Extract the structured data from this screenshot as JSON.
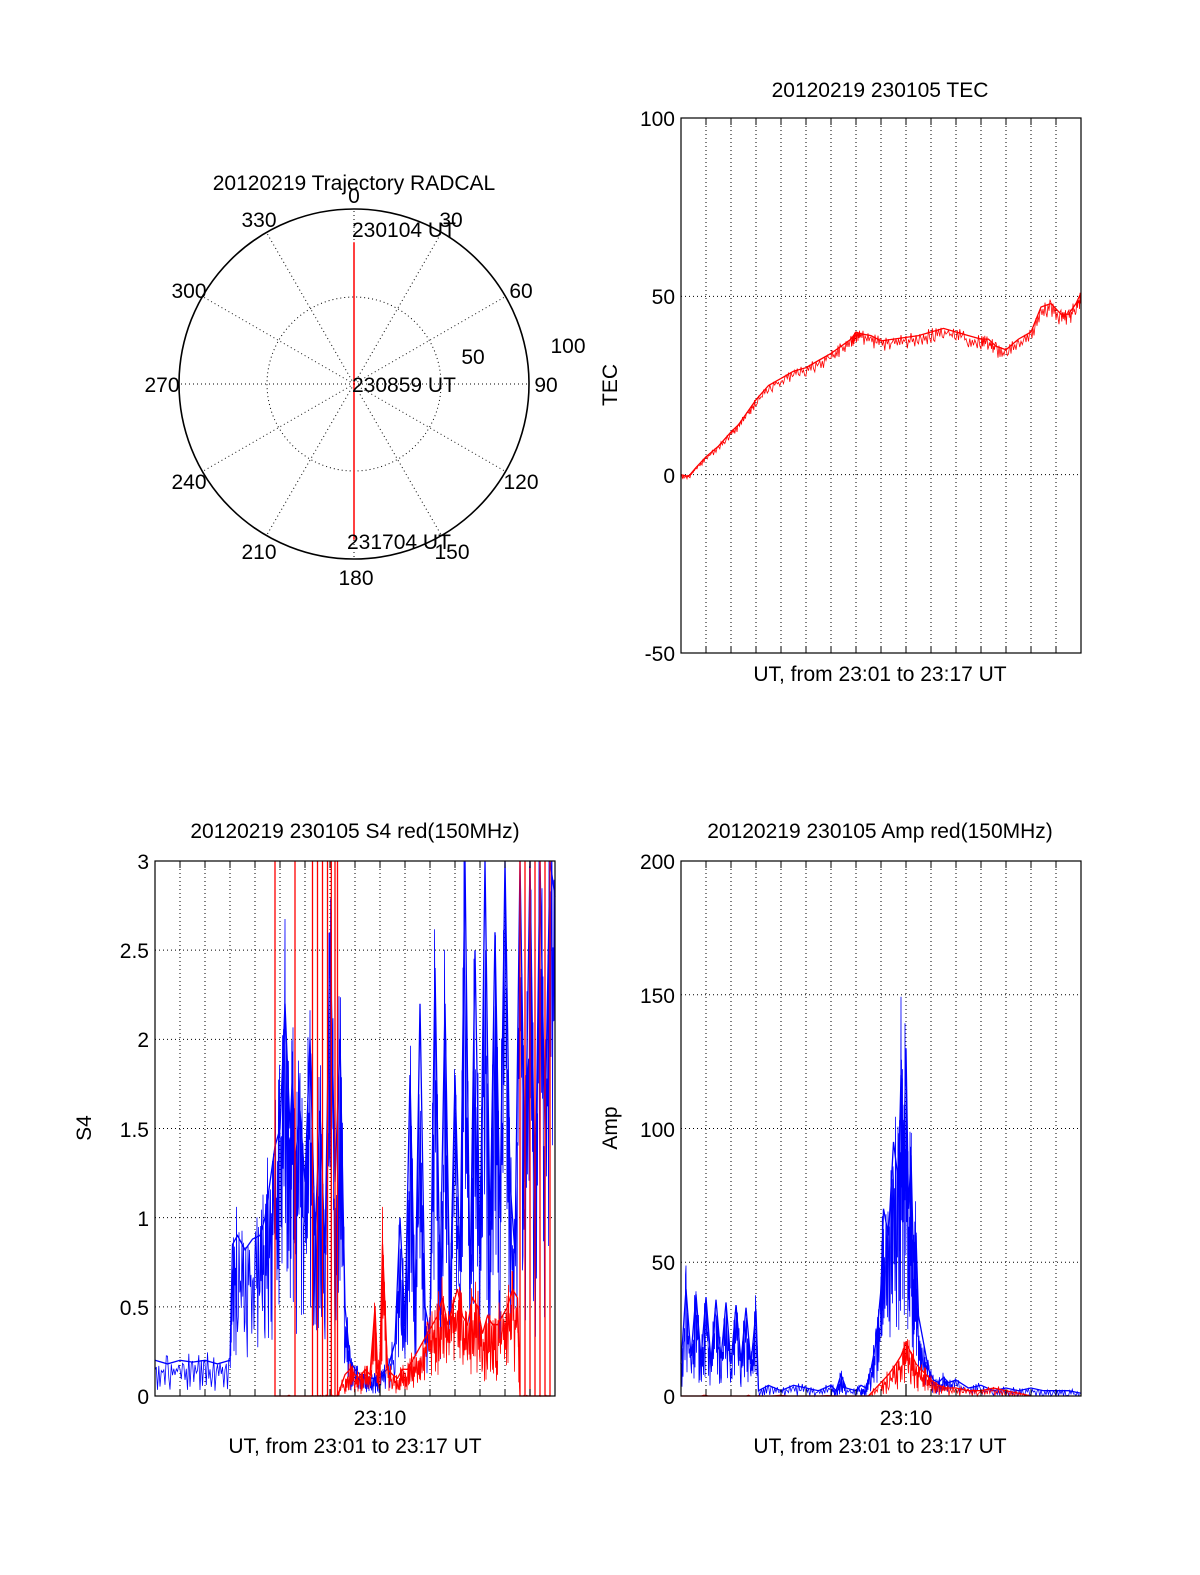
{
  "chart_data": [
    {
      "id": "polar",
      "type": "scatter",
      "title": "20120219 Trajectory RADCAL",
      "projection": "polar",
      "azimuth_labels": [
        "0",
        "30",
        "60",
        "90",
        "120",
        "150",
        "180",
        "210",
        "240",
        "270",
        "300",
        "330"
      ],
      "radius_labels": [
        "50",
        "100"
      ],
      "rlim": [
        0,
        100
      ],
      "grid": true,
      "annotations": [
        "230104 UT",
        "230859 UT",
        "231704 UT"
      ],
      "trajectory": {
        "color": "#ff0000",
        "points": [
          [
            0,
            81
          ],
          [
            0,
            40
          ],
          [
            0,
            5
          ],
          [
            180,
            10
          ],
          [
            180,
            50
          ],
          [
            180,
            89
          ]
        ]
      }
    },
    {
      "id": "tec",
      "type": "line",
      "title": "20120219 230105 TEC",
      "xlabel": "UT, from 23:01 to 23:17 UT",
      "ylabel": "TEC",
      "xlim": [
        0,
        16
      ],
      "ylim": [
        -50,
        100
      ],
      "yticks": [
        "100",
        "50",
        "0",
        "-50"
      ],
      "grid": true,
      "series": [
        {
          "color": "#ff0000",
          "x": [
            0,
            0.3,
            0.6,
            1.0,
            1.5,
            2.0,
            2.3,
            2.7,
            3.0,
            3.5,
            4.0,
            4.5,
            5.0,
            5.5,
            6.0,
            6.4,
            6.8,
            7.0,
            7.2,
            7.6,
            8.0,
            8.5,
            9.0,
            9.5,
            10.0,
            10.5,
            11.0,
            11.5,
            12.0,
            12.3,
            12.6,
            13.0,
            13.5,
            14.0,
            14.4,
            14.8,
            15.2,
            15.5,
            15.8,
            16.0
          ],
          "y": [
            0,
            -0.5,
            2,
            5,
            8,
            12,
            14,
            18,
            21,
            25,
            27,
            29,
            30,
            32,
            34,
            36,
            38,
            40,
            39.5,
            39,
            37.5,
            38,
            38.5,
            39,
            40,
            41,
            40,
            39,
            38,
            38,
            36,
            35,
            38,
            40,
            47,
            48,
            45,
            45,
            48,
            51
          ]
        }
      ]
    },
    {
      "id": "s4",
      "type": "line",
      "title": "20120219 230105 S4 red(150MHz)",
      "xlabel": "UT, from 23:01 to 23:17 UT",
      "ylabel": "S4",
      "xlim": [
        0,
        16
      ],
      "ylim": [
        0,
        3
      ],
      "yticks": [
        "3",
        "2.5",
        "2",
        "1.5",
        "1",
        "0.5",
        "0"
      ],
      "xticks": [
        {
          "value": 9,
          "label": "23:10"
        }
      ],
      "grid": true,
      "series": [
        {
          "color": "#0000ff",
          "x": [
            0,
            0.5,
            1.0,
            1.5,
            2.0,
            2.5,
            3.0,
            3.1,
            3.3,
            3.6,
            3.9,
            4.2,
            4.4,
            4.6,
            4.8,
            5.0,
            5.2,
            5.4,
            5.5,
            5.6,
            5.8,
            6.0,
            6.2,
            6.4,
            6.6,
            6.8,
            7.0,
            7.2,
            7.4,
            7.6,
            7.8,
            8.0,
            8.2,
            8.4,
            8.6,
            8.8,
            9.0,
            9.3,
            9.6,
            9.8,
            10.0,
            10.2,
            10.4,
            10.6,
            10.8,
            11.0,
            11.2,
            11.4,
            11.6,
            11.8,
            12.0,
            12.2,
            12.4,
            12.6,
            12.8,
            13.0,
            13.2,
            13.4,
            13.6,
            13.8,
            14.0,
            14.2,
            14.4,
            14.6,
            14.8,
            15.0,
            15.2,
            15.4,
            15.6,
            15.8,
            16.0
          ],
          "y": [
            0.2,
            0.18,
            0.2,
            0.19,
            0.2,
            0.18,
            0.2,
            0.85,
            0.9,
            0.82,
            0.88,
            0.9,
            1.0,
            1.2,
            1.4,
            1.5,
            2.2,
            1.5,
            1.8,
            1.3,
            1.6,
            1.2,
            2.0,
            0.9,
            1.6,
            0.8,
            2.6,
            1.2,
            2.0,
            0.5,
            0.2,
            0.15,
            0.12,
            0.12,
            0.1,
            0.1,
            0.12,
            0.15,
            0.3,
            1.0,
            0.4,
            1.8,
            0.45,
            2.2,
            0.5,
            0.35,
            2.4,
            0.6,
            2.2,
            0.5,
            1.8,
            0.7,
            3.0,
            0.6,
            2.5,
            0.8,
            3.0,
            0.9,
            2.6,
            1.0,
            3.0,
            1.2,
            0.8,
            3.0,
            1.2,
            3.0,
            1.0,
            3.0,
            1.5,
            3.0,
            2.8
          ]
        },
        {
          "color": "#ff0000",
          "x": [
            4.8,
            4.8,
            4.8,
            5.6,
            5.6,
            5.6,
            6.3,
            6.3,
            6.3,
            6.5,
            6.5,
            6.5,
            6.7,
            6.7,
            6.7,
            6.9,
            6.9,
            6.9,
            7.05,
            7.05,
            7.05,
            7.2,
            7.2,
            7.2,
            7.3,
            7.3,
            7.3,
            7.6,
            7.8,
            8.0,
            8.2,
            8.4,
            8.6,
            8.8,
            8.9,
            9.0,
            9.1,
            9.3,
            9.5,
            9.7,
            9.9,
            10.1,
            10.3,
            10.5,
            10.7,
            10.9,
            11.1,
            11.3,
            11.5,
            11.7,
            11.9,
            12.1,
            12.3,
            12.5,
            12.7,
            12.9,
            13.1,
            13.3,
            13.5,
            13.7,
            13.9,
            14.1,
            14.3,
            14.5,
            14.6,
            14.6,
            14.6,
            14.8,
            14.8,
            14.8,
            15.0,
            15.0,
            15.0,
            15.2,
            15.2,
            15.2,
            15.4,
            15.4,
            15.4,
            15.6,
            15.6,
            15.6,
            15.8,
            15.8,
            15.8
          ],
          "y": [
            0,
            3.0,
            0,
            0,
            3.0,
            0,
            0,
            3.0,
            0,
            0,
            3.0,
            0,
            0,
            3.0,
            0,
            0,
            3.0,
            0,
            0,
            3.0,
            0,
            0,
            3.0,
            0,
            0,
            3.0,
            0,
            0.12,
            0.15,
            0.12,
            0.1,
            0.15,
            0.12,
            0.5,
            0.15,
            0.2,
            0.85,
            0.15,
            0.12,
            0.1,
            0.15,
            0.15,
            0.2,
            0.25,
            0.3,
            0.35,
            0.4,
            0.45,
            0.55,
            0.4,
            0.5,
            0.6,
            0.45,
            0.4,
            0.55,
            0.5,
            0.35,
            0.45,
            0.4,
            0.4,
            0.45,
            0.5,
            0.6,
            0.55,
            0,
            3.0,
            0,
            0,
            3.0,
            0,
            0,
            3.0,
            0,
            0,
            3.0,
            0,
            0,
            3.0,
            0,
            0,
            3.0,
            0,
            0,
            3.0,
            0
          ]
        }
      ]
    },
    {
      "id": "amp",
      "type": "line",
      "title": "20120219 230105 Amp red(150MHz)",
      "xlabel": "UT, from 23:01 to 23:17 UT",
      "ylabel": "Amp",
      "xlim": [
        0,
        16
      ],
      "ylim": [
        0,
        200
      ],
      "yticks": [
        "200",
        "150",
        "100",
        "50",
        "0"
      ],
      "xticks": [
        {
          "value": 9,
          "label": "23:10"
        }
      ],
      "grid": true,
      "series": [
        {
          "color": "#0000ff",
          "x": [
            0,
            0.2,
            0.4,
            0.6,
            0.8,
            1.0,
            1.2,
            1.4,
            1.6,
            1.8,
            2.0,
            2.2,
            2.4,
            2.6,
            2.8,
            3.0,
            3.1,
            3.5,
            4.0,
            4.5,
            5.0,
            5.5,
            6.0,
            6.2,
            6.4,
            6.6,
            7.0,
            7.2,
            7.4,
            7.6,
            7.8,
            8.0,
            8.1,
            8.3,
            8.5,
            8.7,
            8.8,
            8.9,
            9.0,
            9.1,
            9.2,
            9.3,
            9.4,
            9.5,
            9.7,
            9.9,
            10.1,
            10.3,
            10.5,
            10.7,
            11.0,
            11.5,
            12.0,
            12.5,
            13.0,
            13.5,
            14.0,
            14.5,
            15.0,
            15.5,
            16.0
          ],
          "y": [
            12,
            40,
            15,
            38,
            14,
            37,
            13,
            36,
            14,
            35,
            12,
            34,
            13,
            33,
            12,
            32,
            2,
            4,
            2,
            4,
            3,
            2,
            4,
            2,
            8,
            3,
            2,
            4,
            3,
            10,
            20,
            40,
            70,
            60,
            95,
            80,
            120,
            85,
            130,
            70,
            90,
            50,
            60,
            30,
            20,
            10,
            6,
            5,
            7,
            5,
            6,
            3,
            4,
            2,
            3,
            2,
            3,
            2,
            2,
            2,
            1
          ]
        },
        {
          "color": "#ff0000",
          "x": [
            0,
            1.0,
            2.0,
            3.0,
            3.2,
            7.0,
            7.5,
            8.0,
            8.3,
            8.6,
            8.8,
            9.0,
            9.2,
            9.4,
            9.6,
            9.8,
            10.0,
            10.3,
            10.6,
            11.0,
            11.5,
            12.0,
            12.5,
            13.0,
            13.5,
            14.0
          ],
          "y": [
            0,
            0,
            0,
            0,
            0,
            0,
            0,
            5,
            8,
            12,
            15,
            20,
            16,
            12,
            10,
            8,
            6,
            4,
            3,
            3,
            2,
            2,
            3,
            2,
            1,
            0
          ]
        }
      ]
    }
  ]
}
